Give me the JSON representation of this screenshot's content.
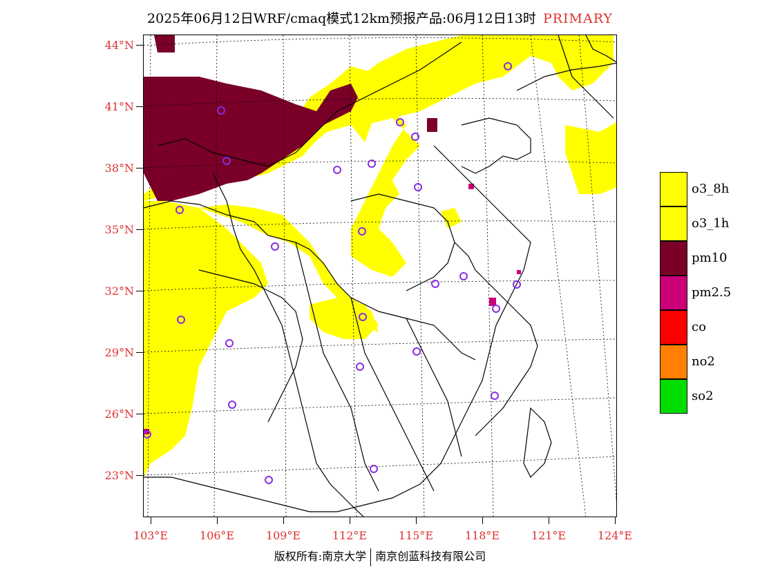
{
  "title": {
    "text": "2025年06月12日WRF/cmaq模式12km预报产品:06月12日13时",
    "tag": "PRIMARY"
  },
  "axes": {
    "latitude_labels": [
      "44°N",
      "41°N",
      "38°N",
      "35°N",
      "32°N",
      "29°N",
      "26°N",
      "23°N"
    ],
    "longitude_labels": [
      "103°E",
      "106°E",
      "109°E",
      "112°E",
      "115°E",
      "118°E",
      "121°E",
      "124°E"
    ]
  },
  "legend": {
    "items": [
      {
        "label": "o3_8h",
        "color": "#ffff00"
      },
      {
        "label": "o3_1h",
        "color": "#ffff00"
      },
      {
        "label": "pm10",
        "color": "#7a0028"
      },
      {
        "label": "pm2.5",
        "color": "#cc0077"
      },
      {
        "label": "co",
        "color": "#ff0000"
      },
      {
        "label": "no2",
        "color": "#ff7f00"
      },
      {
        "label": "so2",
        "color": "#00dd00"
      }
    ]
  },
  "footer": {
    "left": "版权所有:南京大学",
    "right": "南京创蓝科技有限公司"
  },
  "colors": {
    "axis_label": "#e03030",
    "station_marker": "#8a2be2",
    "o3": "#ffff00",
    "pm10": "#7a0028"
  }
}
